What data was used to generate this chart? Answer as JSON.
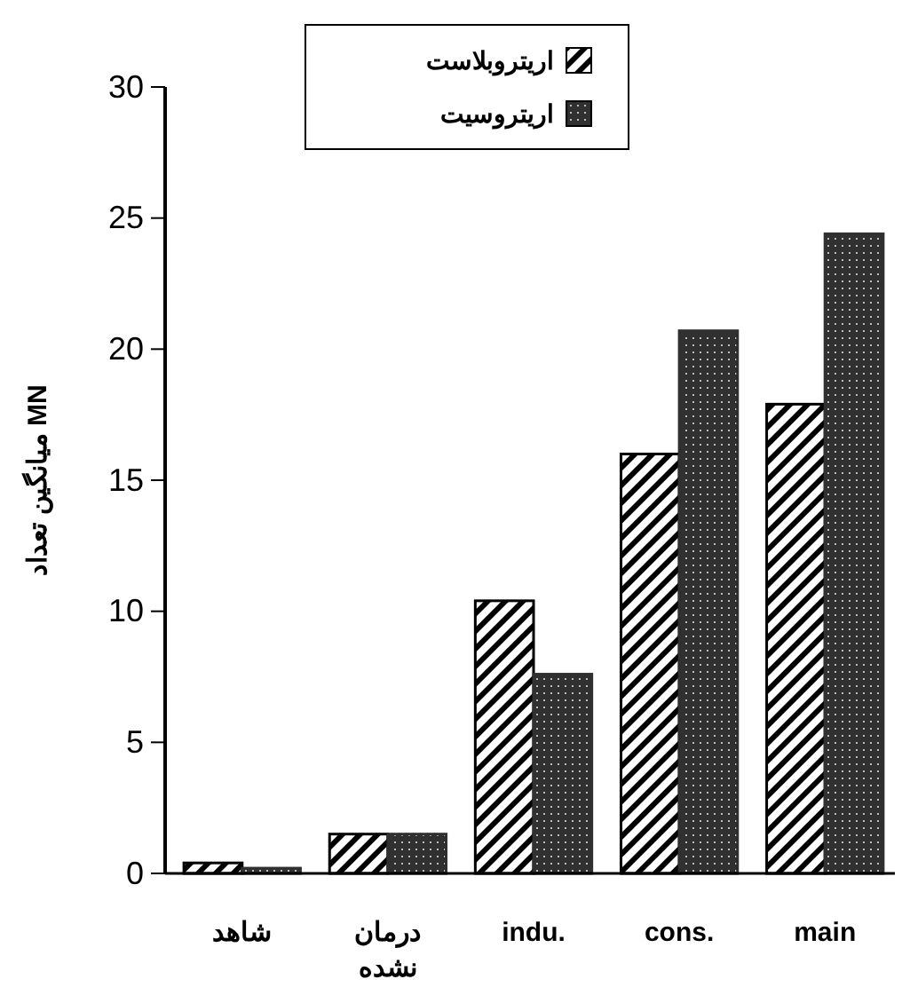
{
  "chart_data": {
    "type": "bar",
    "ylabel": "میانگین تعداد MN",
    "categories": [
      "شاهد",
      "درمان نشده",
      "indu.",
      "cons.",
      "main"
    ],
    "series": [
      {
        "name": "اریتروبلاست",
        "color": "#000000",
        "values": [
          0.4,
          1.5,
          10.4,
          16.0,
          17.9
        ]
      },
      {
        "name": "اریتروسیت",
        "color": "#303030",
        "values": [
          0.2,
          1.5,
          7.6,
          20.7,
          24.4
        ]
      }
    ],
    "ylim": [
      0,
      30
    ],
    "yticks": [
      0,
      5,
      10,
      15,
      20,
      25,
      30
    ],
    "grid": false,
    "legend": "top"
  }
}
